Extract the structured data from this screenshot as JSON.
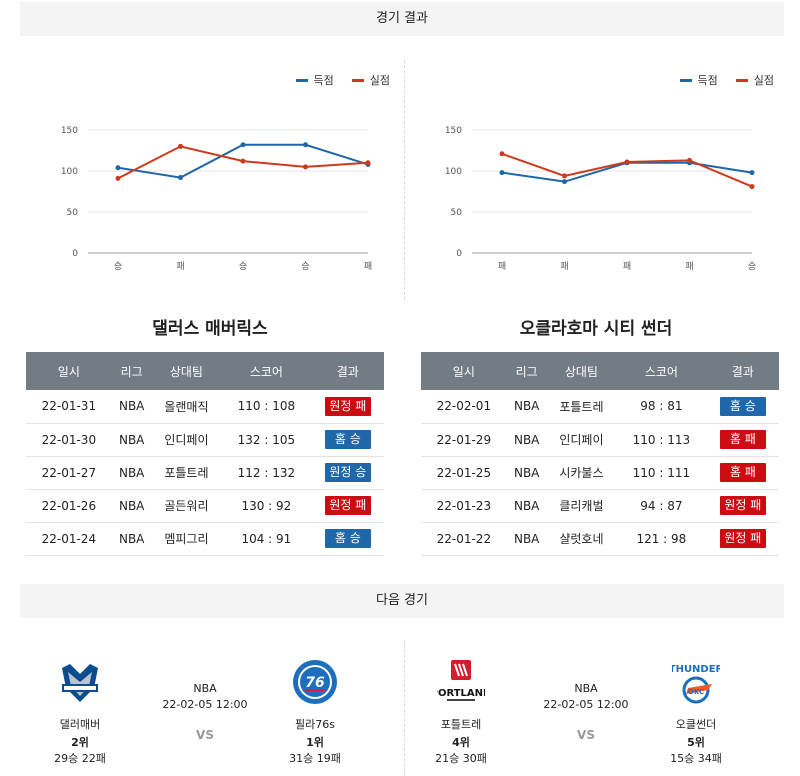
{
  "sections": {
    "results": "경기 결과",
    "next": "다음 경기"
  },
  "legend": {
    "scored": "득점",
    "allowed": "실점"
  },
  "colors": {
    "scored": "#1f67a8",
    "allowed": "#cc3a1c",
    "loss_badge": "#cc0b12",
    "win_badge": "#1f67a8",
    "table_header": "#727c84"
  },
  "charts": [
    {
      "chart_data": {
        "type": "line",
        "categories": [
          "승",
          "패",
          "승",
          "승",
          "패"
        ],
        "yticks": [
          0,
          50,
          100,
          150
        ],
        "ylim": [
          0,
          150
        ],
        "grid": true,
        "legend": "top-right",
        "series": [
          {
            "name": "득점",
            "values": [
              104,
              92,
              132,
              132,
              108
            ]
          },
          {
            "name": "실점",
            "values": [
              91,
              130,
              112,
              105,
              110
            ]
          }
        ]
      }
    },
    {
      "chart_data": {
        "type": "line",
        "categories": [
          "패",
          "패",
          "패",
          "패",
          "승"
        ],
        "yticks": [
          0,
          50,
          100,
          150
        ],
        "ylim": [
          0,
          150
        ],
        "grid": true,
        "legend": "top-right",
        "series": [
          {
            "name": "득점",
            "values": [
              98,
              87,
              110,
              110,
              98
            ]
          },
          {
            "name": "실점",
            "values": [
              121,
              94,
              111,
              113,
              81
            ]
          }
        ]
      }
    }
  ],
  "teams": [
    {
      "title": "댈러스 매버릭스",
      "headers": [
        "일시",
        "리그",
        "상대팀",
        "스코어",
        "결과"
      ],
      "rows": [
        {
          "date": "22-01-31",
          "league": "NBA",
          "opponent": "올랜매직",
          "score": "110 : 108",
          "result": "원정 패",
          "type": "loss"
        },
        {
          "date": "22-01-30",
          "league": "NBA",
          "opponent": "인디페이",
          "score": "132 : 105",
          "result": "홈 승",
          "type": "win"
        },
        {
          "date": "22-01-27",
          "league": "NBA",
          "opponent": "포틀트레",
          "score": "112 : 132",
          "result": "원정 승",
          "type": "win"
        },
        {
          "date": "22-01-26",
          "league": "NBA",
          "opponent": "골든워리",
          "score": "130 : 92",
          "result": "원정 패",
          "type": "loss"
        },
        {
          "date": "22-01-24",
          "league": "NBA",
          "opponent": "멤피그리",
          "score": "104 : 91",
          "result": "홈 승",
          "type": "win"
        }
      ]
    },
    {
      "title": "오클라호마 시티 썬더",
      "headers": [
        "일시",
        "리그",
        "상대팀",
        "스코어",
        "결과"
      ],
      "rows": [
        {
          "date": "22-02-01",
          "league": "NBA",
          "opponent": "포틀트레",
          "score": "98 : 81",
          "result": "홈 승",
          "type": "win"
        },
        {
          "date": "22-01-29",
          "league": "NBA",
          "opponent": "인디페이",
          "score": "110 : 113",
          "result": "홈 패",
          "type": "loss"
        },
        {
          "date": "22-01-25",
          "league": "NBA",
          "opponent": "시카불스",
          "score": "110 : 111",
          "result": "홈 패",
          "type": "loss"
        },
        {
          "date": "22-01-23",
          "league": "NBA",
          "opponent": "클리캐벌",
          "score": "94 : 87",
          "result": "원정 패",
          "type": "loss"
        },
        {
          "date": "22-01-22",
          "league": "NBA",
          "opponent": "샬럿호네",
          "score": "121 : 98",
          "result": "원정 패",
          "type": "loss"
        }
      ]
    }
  ],
  "next_games": [
    {
      "league": "NBA",
      "datetime": "22-02-05 12:00",
      "vs": "VS",
      "home": {
        "name": "댈러매버",
        "rank": "2위",
        "record": "29승 22패",
        "logo": "dallas-mavericks-logo"
      },
      "away": {
        "name": "필라76s",
        "rank": "1위",
        "record": "31승 19패",
        "logo": "philadelphia-76ers-logo"
      }
    },
    {
      "league": "NBA",
      "datetime": "22-02-05 12:00",
      "vs": "VS",
      "home": {
        "name": "포틀트레",
        "rank": "4위",
        "record": "21승 30패",
        "logo": "portland-trail-blazers-logo"
      },
      "away": {
        "name": "오클썬더",
        "rank": "5위",
        "record": "15승 34패",
        "logo": "okc-thunder-logo"
      }
    }
  ]
}
